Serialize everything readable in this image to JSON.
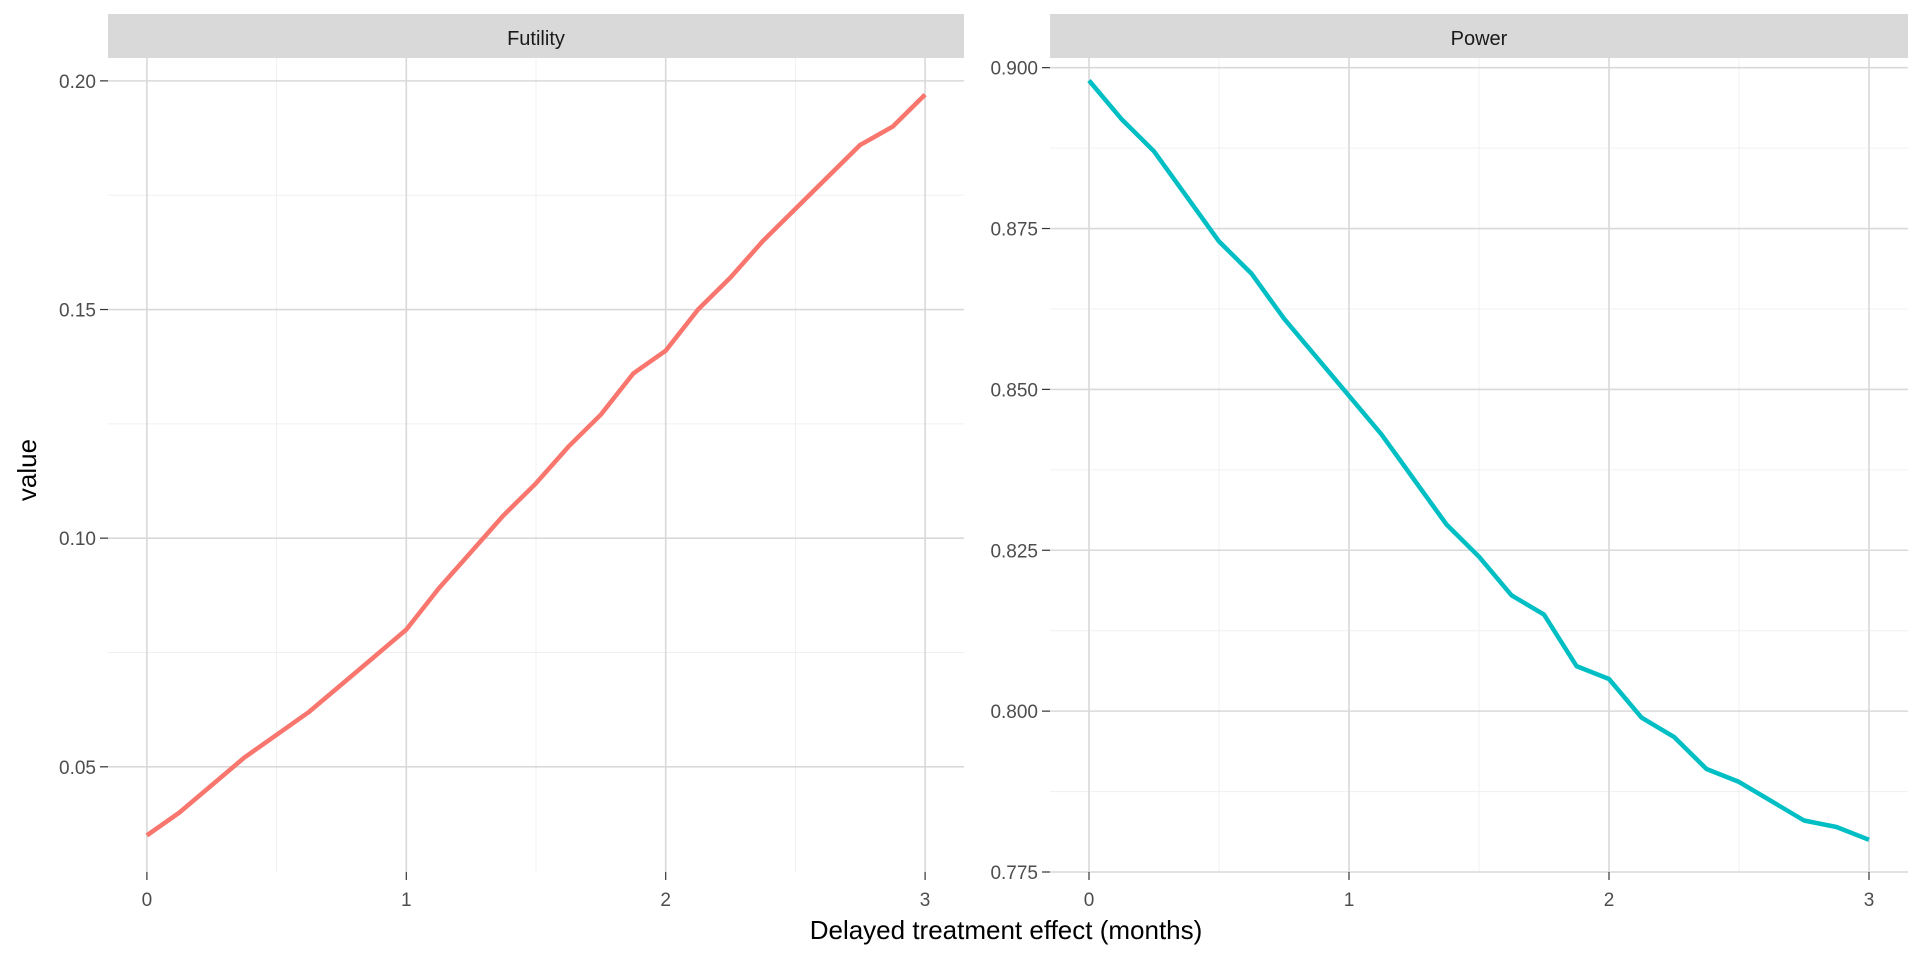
{
  "chart_data": [
    {
      "type": "line",
      "panel": "Futility",
      "x": [
        0,
        0.125,
        0.25,
        0.375,
        0.5,
        0.625,
        0.75,
        0.875,
        1,
        1.125,
        1.25,
        1.375,
        1.5,
        1.625,
        1.75,
        1.875,
        2,
        2.125,
        2.25,
        2.375,
        2.5,
        2.625,
        2.75,
        2.875,
        3
      ],
      "values": [
        0.035,
        0.04,
        0.046,
        0.052,
        0.057,
        0.062,
        0.068,
        0.074,
        0.08,
        0.089,
        0.097,
        0.105,
        0.112,
        0.12,
        0.127,
        0.136,
        0.141,
        0.15,
        0.157,
        0.165,
        0.172,
        0.179,
        0.186,
        0.19,
        0.197
      ],
      "xlim": [
        -0.15,
        3.15
      ],
      "ylim": [
        0.027,
        0.205
      ],
      "xticks": [
        0,
        1,
        2,
        3
      ],
      "yticks": [
        0.05,
        0.1,
        0.15,
        0.2
      ],
      "ytick_labels": [
        "0.05",
        "0.10",
        "0.15",
        "0.20"
      ],
      "color": "#F8766D",
      "grid": true
    },
    {
      "type": "line",
      "panel": "Power",
      "x": [
        0,
        0.125,
        0.25,
        0.375,
        0.5,
        0.625,
        0.75,
        0.875,
        1,
        1.125,
        1.25,
        1.375,
        1.5,
        1.625,
        1.75,
        1.875,
        2,
        2.125,
        2.25,
        2.375,
        2.5,
        2.625,
        2.75,
        2.875,
        3
      ],
      "values": [
        0.898,
        0.892,
        0.887,
        0.88,
        0.873,
        0.868,
        0.861,
        0.855,
        0.849,
        0.843,
        0.836,
        0.829,
        0.824,
        0.818,
        0.815,
        0.807,
        0.805,
        0.799,
        0.796,
        0.791,
        0.789,
        0.786,
        0.783,
        0.782,
        0.78
      ],
      "xlim": [
        -0.15,
        3.15
      ],
      "ylim": [
        0.775,
        0.9015
      ],
      "xticks": [
        0,
        1,
        2,
        3
      ],
      "yticks": [
        0.775,
        0.8,
        0.825,
        0.85,
        0.875,
        0.9
      ],
      "ytick_labels": [
        "0.775",
        "0.800",
        "0.825",
        "0.850",
        "0.875",
        "0.900"
      ],
      "color": "#00BFC4",
      "grid": true
    }
  ],
  "xlabel": "Delayed treatment effect (months)",
  "ylabel": "value"
}
